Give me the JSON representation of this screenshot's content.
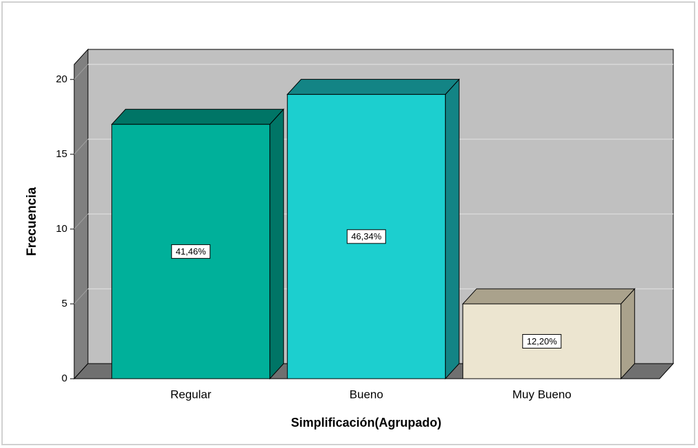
{
  "chart_data": {
    "type": "bar3d",
    "x_label": "Simplificación(Agrupado)",
    "y_label": "Frecuencia",
    "categories": [
      "Regular",
      "Bueno",
      "Muy Bueno"
    ],
    "values": [
      17,
      19,
      5
    ],
    "bar_labels": [
      "41,46%",
      "46,34%",
      "12,20%"
    ],
    "colors": [
      "#00b09a",
      "#1ccfcf",
      "#ece5d0"
    ],
    "top_colors": [
      "#007566",
      "#138485",
      "#aaa28c"
    ],
    "ylim": [
      0,
      21
    ],
    "yticks": [
      0,
      5,
      10,
      15,
      20
    ],
    "grid": true
  }
}
